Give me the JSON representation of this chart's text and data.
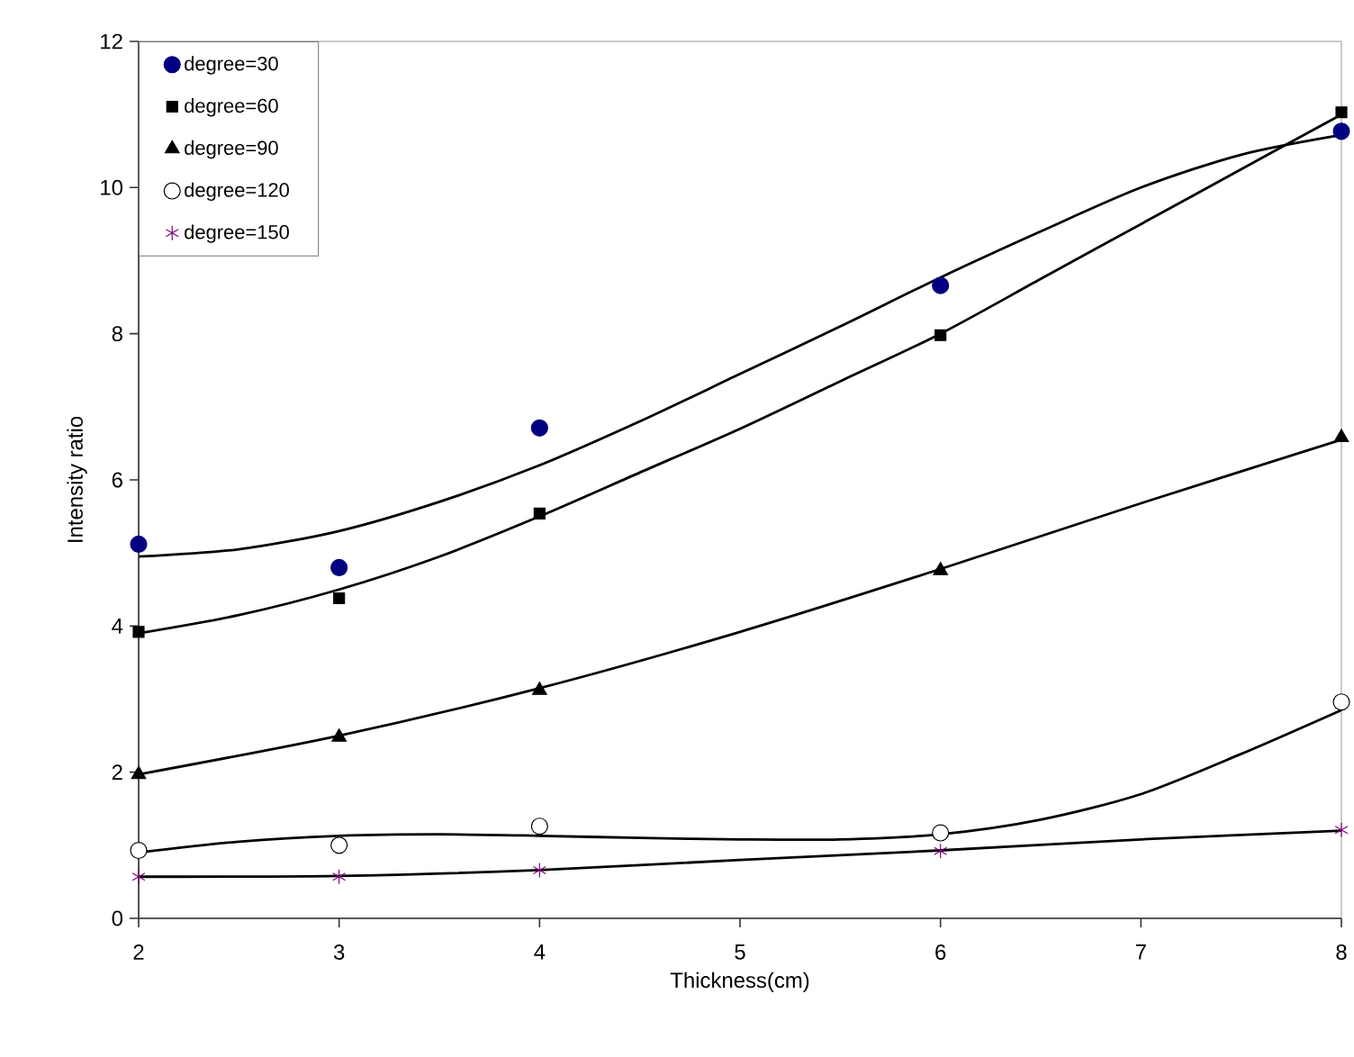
{
  "chart_data": {
    "type": "scatter",
    "xlabel": "Thickness(cm)",
    "ylabel": "Intensity ratio",
    "xlim": [
      2,
      8
    ],
    "ylim": [
      0,
      12
    ],
    "xticks": [
      2,
      3,
      4,
      5,
      6,
      7,
      8
    ],
    "yticks": [
      0,
      2,
      4,
      6,
      8,
      10,
      12
    ],
    "grid": false,
    "legend": "top left",
    "series": [
      {
        "name": "degree=30",
        "color": "#000080",
        "marker": "circle",
        "x": [
          2,
          3,
          4,
          6,
          8
        ],
        "values": [
          5.12,
          4.8,
          6.71,
          8.66,
          10.77
        ]
      },
      {
        "name": "degree=60",
        "color": "#000000",
        "marker": "square",
        "x": [
          2,
          3,
          4,
          6,
          8
        ],
        "values": [
          3.92,
          4.38,
          5.54,
          7.98,
          11.03
        ]
      },
      {
        "name": "degree=90",
        "color": "#000000",
        "marker": "triangle",
        "x": [
          2,
          3,
          4,
          6,
          8
        ],
        "values": [
          1.97,
          2.48,
          3.12,
          4.76,
          6.58
        ]
      },
      {
        "name": "degree=120",
        "color": "#ffffff",
        "marker": "circle",
        "x": [
          2,
          3,
          4,
          6,
          8
        ],
        "values": [
          0.93,
          1.0,
          1.26,
          1.17,
          2.96
        ]
      },
      {
        "name": "degree=150",
        "color": "#800080",
        "marker": "cross",
        "x": [
          2,
          3,
          4,
          6,
          8
        ],
        "values": [
          0.57,
          0.57,
          0.66,
          0.92,
          1.21
        ]
      },
      {
        "type": "line",
        "color": "#000000",
        "marker": "none",
        "x": [
          2,
          2.5,
          3,
          3.5,
          4,
          4.5,
          5,
          5.5,
          6,
          6.5,
          7,
          7.5,
          8
        ],
        "values": [
          4.95,
          5.05,
          5.3,
          5.7,
          6.2,
          6.8,
          7.45,
          8.1,
          8.77,
          9.4,
          10.0,
          10.45,
          10.72
        ]
      },
      {
        "type": "line",
        "color": "#000000",
        "marker": "none",
        "x": [
          2,
          2.5,
          3,
          3.5,
          4,
          4.5,
          5,
          5.5,
          6,
          6.5,
          7,
          7.5,
          8
        ],
        "values": [
          3.9,
          4.15,
          4.5,
          4.95,
          5.5,
          6.1,
          6.7,
          7.35,
          8.0,
          8.75,
          9.5,
          10.25,
          11.0
        ]
      },
      {
        "type": "line",
        "color": "#000000",
        "marker": "none",
        "x": [
          2,
          3,
          4,
          5,
          6,
          7,
          8
        ],
        "values": [
          1.97,
          2.5,
          3.15,
          3.92,
          4.78,
          5.68,
          6.55
        ]
      },
      {
        "type": "line",
        "color": "#000000",
        "marker": "none",
        "x": [
          2,
          2.5,
          3,
          3.5,
          4,
          4.5,
          5,
          5.5,
          6,
          6.5,
          7,
          7.5,
          8
        ],
        "values": [
          0.9,
          1.05,
          1.13,
          1.15,
          1.13,
          1.1,
          1.08,
          1.08,
          1.15,
          1.35,
          1.7,
          2.25,
          2.85
        ]
      },
      {
        "type": "line",
        "color": "#000000",
        "marker": "none",
        "x": [
          2,
          3,
          4,
          5,
          6,
          7,
          8
        ],
        "values": [
          0.57,
          0.58,
          0.66,
          0.8,
          0.93,
          1.08,
          1.2
        ]
      }
    ]
  }
}
